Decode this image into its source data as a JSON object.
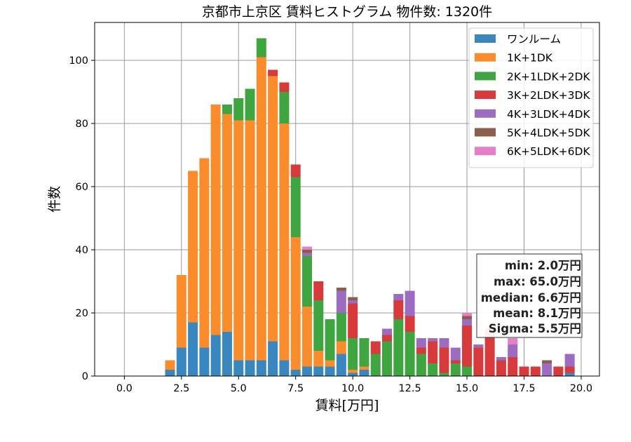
{
  "chart_data": {
    "type": "bar",
    "stacked": true,
    "title": "京都市上京区 賃料ヒストグラム 物件数: 1320件",
    "xlabel": "賃料[万円]",
    "ylabel": "件数",
    "xlim": [
      -1.3,
      20.8
    ],
    "ylim": [
      0,
      112
    ],
    "xticks": [
      0.0,
      2.5,
      5.0,
      7.5,
      10.0,
      12.5,
      15.0,
      17.5,
      20.0
    ],
    "xtick_labels": [
      "0.0",
      "2.5",
      "5.0",
      "7.5",
      "10.0",
      "12.5",
      "15.0",
      "17.5",
      "20.0"
    ],
    "yticks": [
      0,
      20,
      40,
      60,
      80,
      100
    ],
    "ytick_labels": [
      "0",
      "20",
      "40",
      "60",
      "80",
      "100"
    ],
    "grid": true,
    "legend_position": "top-right",
    "bin_width": 0.5,
    "bin_starts": [
      1.75,
      2.25,
      2.75,
      3.25,
      3.75,
      4.25,
      4.75,
      5.25,
      5.75,
      6.25,
      6.75,
      7.25,
      7.75,
      8.25,
      8.75,
      9.25,
      9.75,
      10.25,
      10.75,
      11.25,
      11.75,
      12.25,
      12.75,
      13.25,
      13.75,
      14.25,
      14.75,
      15.25,
      15.75,
      16.25,
      16.75,
      17.25,
      17.75,
      18.25,
      18.75,
      19.25
    ],
    "series": [
      {
        "name": "ワンルーム",
        "color": "#3a87c0",
        "values": [
          2,
          9,
          17,
          9,
          13,
          14,
          5,
          5,
          5,
          11,
          5,
          2,
          3,
          3,
          3,
          7,
          1,
          2,
          0,
          0,
          0,
          0,
          0,
          0,
          0,
          0,
          0,
          0,
          0,
          0,
          0,
          0,
          0,
          0,
          0,
          1
        ]
      },
      {
        "name": "1K+1DK",
        "color": "#fb8c2c",
        "values": [
          3,
          23,
          48,
          60,
          73,
          69,
          76,
          76,
          96,
          84,
          75,
          42,
          19,
          5,
          2,
          4,
          1,
          1,
          0,
          0,
          0,
          0,
          0,
          0,
          0,
          0,
          0,
          0,
          0,
          0,
          0,
          0,
          0,
          0,
          0,
          0
        ]
      },
      {
        "name": "2K+1LDK+2DK",
        "color": "#3ea540",
        "values": [
          0,
          0,
          0,
          0,
          0,
          3,
          7,
          10,
          6,
          0,
          10,
          19,
          16,
          16,
          13,
          9,
          10,
          9,
          7,
          11,
          18,
          14,
          7,
          4,
          1,
          4,
          3,
          0,
          0,
          0,
          0,
          0,
          0,
          0,
          0,
          0
        ]
      },
      {
        "name": "3K+2LDK+3DK",
        "color": "#d63a3a",
        "values": [
          0,
          0,
          0,
          0,
          0,
          0,
          0,
          0,
          0,
          2,
          3,
          4,
          0,
          6,
          0,
          0,
          11,
          0,
          4,
          2,
          6,
          5,
          2,
          7,
          8,
          1,
          13,
          9,
          15,
          5,
          6,
          3,
          3,
          0,
          3,
          2
        ]
      },
      {
        "name": "4K+3LDK+4DK",
        "color": "#9b6cc0",
        "values": [
          0,
          0,
          0,
          0,
          0,
          0,
          0,
          0,
          0,
          0,
          0,
          0,
          1,
          0,
          0,
          7,
          1,
          0,
          0,
          2,
          2,
          8,
          3,
          1,
          3,
          4,
          2,
          1,
          0,
          1,
          4,
          0,
          0,
          4,
          0,
          4
        ]
      },
      {
        "name": "5K+4LDK+5DK",
        "color": "#8c5c4c",
        "values": [
          0,
          0,
          0,
          0,
          0,
          0,
          0,
          0,
          0,
          0,
          0,
          0,
          1,
          0,
          0,
          1,
          1,
          0,
          0,
          0,
          0,
          0,
          0,
          0,
          0,
          0,
          1,
          0,
          0,
          0,
          0,
          0,
          0,
          1,
          0,
          0
        ]
      },
      {
        "name": "6K+5LDK+6DK",
        "color": "#e67ec8",
        "values": [
          0,
          0,
          0,
          0,
          0,
          0,
          0,
          0,
          0,
          0,
          0,
          0,
          1,
          0,
          0,
          0,
          0,
          0,
          0,
          0,
          0,
          0,
          0,
          0,
          0,
          0,
          1,
          0,
          0,
          0,
          2,
          0,
          0,
          0,
          0,
          0
        ]
      }
    ],
    "stats": {
      "min": "min: 2.0万円",
      "max": "max: 65.0万円",
      "median": "median: 6.6万円",
      "mean": "mean: 8.1万円",
      "sigma": "Sigma: 5.5万円"
    }
  }
}
